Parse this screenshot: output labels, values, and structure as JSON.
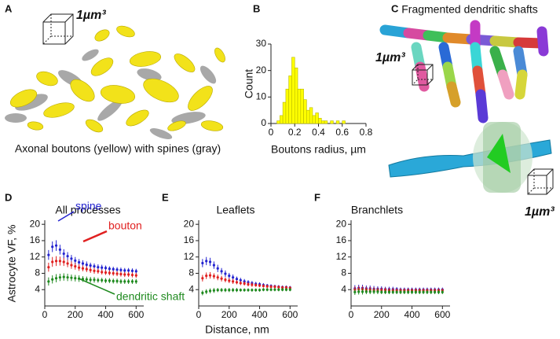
{
  "panel_a": {
    "letter": "A",
    "scale": "1µm³",
    "caption": "Axonal boutons (yellow) with spines (gray)"
  },
  "panel_c": {
    "letter": "C",
    "title": "Fragmented dendritic shafts",
    "scale_top": "1µm³",
    "scale_bottom": "1µm³"
  },
  "chart_data": [
    {
      "type": "histogram",
      "letter": "B",
      "xlabel": "Boutons radius, µm",
      "ylabel": "Count",
      "color": "#ffff00",
      "bins": [
        0.05,
        0.075,
        0.1,
        0.125,
        0.15,
        0.175,
        0.2,
        0.225,
        0.25,
        0.275,
        0.3,
        0.325,
        0.35,
        0.375,
        0.4,
        0.425,
        0.45,
        0.475,
        0.5,
        0.525,
        0.55,
        0.575,
        0.6,
        0.625
      ],
      "values": [
        1,
        3,
        8,
        13,
        18,
        25,
        21,
        13,
        13,
        9,
        5,
        6,
        3,
        4,
        2,
        1,
        1,
        0,
        1,
        0,
        1,
        0,
        1
      ],
      "xlim": [
        0,
        0.8
      ],
      "xticks": [
        0,
        0.2,
        0.4,
        0.6,
        0.8
      ],
      "ylim": [
        0,
        30
      ],
      "yticks": [
        0,
        10,
        20,
        30
      ]
    },
    {
      "type": "errorbar",
      "letter": "D",
      "title": "All processes",
      "ylabel": "Astrocyte VF, %",
      "x": [
        25,
        50,
        75,
        100,
        125,
        150,
        175,
        200,
        225,
        250,
        275,
        300,
        325,
        350,
        375,
        400,
        425,
        450,
        475,
        500,
        525,
        550,
        575,
        600
      ],
      "series": [
        {
          "name": "spine",
          "color": "#2323d0",
          "values": [
            12.5,
            14.5,
            14.8,
            13.8,
            12.8,
            12.2,
            11.6,
            11.1,
            10.7,
            10.4,
            10.1,
            9.9,
            9.7,
            9.5,
            9.4,
            9.3,
            9.1,
            9.0,
            8.9,
            8.8,
            8.7,
            8.7,
            8.6,
            8.5
          ],
          "errors": [
            1.2,
            1.3,
            1.3,
            1.2,
            1.1,
            1.0,
            0.9,
            0.9,
            0.8,
            0.8,
            0.8,
            0.7,
            0.7,
            0.7,
            0.7,
            0.6,
            0.6,
            0.6,
            0.6,
            0.6,
            0.6,
            0.6,
            0.6,
            0.6
          ]
        },
        {
          "name": "bouton",
          "color": "#e02020",
          "values": [
            9.5,
            10.8,
            11.0,
            11.0,
            10.8,
            10.4,
            10.0,
            9.7,
            9.4,
            9.2,
            9.0,
            8.8,
            8.6,
            8.5,
            8.3,
            8.2,
            8.1,
            8.0,
            7.9,
            7.8,
            7.7,
            7.7,
            7.6,
            7.5
          ],
          "errors": [
            1.1,
            1.2,
            1.2,
            1.1,
            1.0,
            0.9,
            0.9,
            0.8,
            0.8,
            0.7,
            0.7,
            0.7,
            0.7,
            0.6,
            0.6,
            0.6,
            0.6,
            0.6,
            0.6,
            0.6,
            0.6,
            0.6,
            0.6,
            0.6
          ]
        },
        {
          "name": "dendritic shaft",
          "color": "#1f8a1f",
          "values": [
            6.0,
            6.5,
            6.8,
            7.0,
            7.1,
            7.0,
            6.9,
            6.8,
            6.7,
            6.6,
            6.5,
            6.4,
            6.4,
            6.3,
            6.3,
            6.2,
            6.2,
            6.1,
            6.1,
            6.0,
            6.0,
            6.0,
            6.0,
            6.0
          ],
          "errors": [
            1.0,
            1.0,
            1.0,
            0.9,
            0.9,
            0.9,
            0.8,
            0.8,
            0.8,
            0.7,
            0.7,
            0.7,
            0.7,
            0.6,
            0.6,
            0.6,
            0.6,
            0.6,
            0.6,
            0.6,
            0.6,
            0.6,
            0.6,
            0.6
          ]
        }
      ],
      "xlim": [
        0,
        650
      ],
      "xticks": [
        0,
        200,
        400,
        600
      ],
      "ylim": [
        0,
        21
      ],
      "yticks": [
        4,
        8,
        12,
        16,
        20
      ]
    },
    {
      "type": "errorbar",
      "letter": "E",
      "title": "Leaflets",
      "xlabel": "Distance, nm",
      "x": [
        25,
        50,
        75,
        100,
        125,
        150,
        175,
        200,
        225,
        250,
        275,
        300,
        325,
        350,
        375,
        400,
        425,
        450,
        475,
        500,
        525,
        550,
        575,
        600
      ],
      "series": [
        {
          "color": "#2323d0",
          "values": [
            10.5,
            11.0,
            10.8,
            10.0,
            9.2,
            8.5,
            7.9,
            7.4,
            7.0,
            6.6,
            6.3,
            6.0,
            5.8,
            5.6,
            5.4,
            5.3,
            5.1,
            5.0,
            4.9,
            4.8,
            4.7,
            4.6,
            4.6,
            4.5
          ],
          "errors": [
            1.0,
            1.0,
            1.0,
            0.9,
            0.9,
            0.8,
            0.8,
            0.7,
            0.7,
            0.6,
            0.6,
            0.6,
            0.5,
            0.5,
            0.5,
            0.5,
            0.5,
            0.4,
            0.4,
            0.4,
            0.4,
            0.4,
            0.4,
            0.4
          ]
        },
        {
          "color": "#e02020",
          "values": [
            6.8,
            7.4,
            7.5,
            7.3,
            7.0,
            6.7,
            6.4,
            6.2,
            6.0,
            5.8,
            5.6,
            5.5,
            5.3,
            5.2,
            5.1,
            5.0,
            4.9,
            4.8,
            4.7,
            4.7,
            4.6,
            4.5,
            4.5,
            4.4
          ],
          "errors": [
            0.8,
            0.8,
            0.8,
            0.7,
            0.7,
            0.7,
            0.6,
            0.6,
            0.6,
            0.5,
            0.5,
            0.5,
            0.5,
            0.5,
            0.4,
            0.4,
            0.4,
            0.4,
            0.4,
            0.4,
            0.4,
            0.4,
            0.4,
            0.4
          ]
        },
        {
          "color": "#1f8a1f",
          "values": [
            3.2,
            3.5,
            3.7,
            3.8,
            3.9,
            3.9,
            3.9,
            3.9,
            3.9,
            3.9,
            3.9,
            3.9,
            3.9,
            3.9,
            3.9,
            3.9,
            4.0,
            4.0,
            4.0,
            4.0,
            4.0,
            4.0,
            4.0,
            4.0
          ],
          "errors": [
            0.6,
            0.6,
            0.6,
            0.6,
            0.5,
            0.5,
            0.5,
            0.5,
            0.5,
            0.5,
            0.4,
            0.4,
            0.4,
            0.4,
            0.4,
            0.4,
            0.4,
            0.4,
            0.4,
            0.4,
            0.4,
            0.4,
            0.4,
            0.4
          ]
        }
      ],
      "xlim": [
        0,
        650
      ],
      "xticks": [
        0,
        200,
        400,
        600
      ],
      "ylim": [
        0,
        21
      ],
      "yticks": [
        4,
        8,
        12,
        16,
        20
      ]
    },
    {
      "type": "errorbar",
      "letter": "F",
      "title": "Branchlets",
      "x": [
        25,
        50,
        75,
        100,
        125,
        150,
        175,
        200,
        225,
        250,
        275,
        300,
        325,
        350,
        375,
        400,
        425,
        450,
        475,
        500,
        525,
        550,
        575,
        600
      ],
      "series": [
        {
          "color": "#2323d0",
          "values": [
            4.3,
            4.4,
            4.4,
            4.3,
            4.3,
            4.2,
            4.2,
            4.2,
            4.1,
            4.1,
            4.1,
            4.1,
            4.0,
            4.0,
            4.0,
            4.0,
            4.0,
            4.0,
            4.0,
            4.0,
            4.0,
            4.0,
            4.0,
            4.0
          ],
          "errors": [
            0.8,
            0.8,
            0.8,
            0.7,
            0.7,
            0.7,
            0.6,
            0.6,
            0.6,
            0.6,
            0.6,
            0.5,
            0.5,
            0.5,
            0.5,
            0.5,
            0.5,
            0.5,
            0.5,
            0.5,
            0.5,
            0.5,
            0.5,
            0.5
          ]
        },
        {
          "color": "#e02020",
          "values": [
            4.0,
            4.1,
            4.1,
            4.0,
            4.0,
            3.9,
            3.9,
            3.9,
            3.9,
            3.8,
            3.8,
            3.8,
            3.8,
            3.8,
            3.8,
            3.8,
            3.8,
            3.8,
            3.8,
            3.8,
            3.8,
            3.8,
            3.8,
            3.8
          ],
          "errors": [
            0.8,
            0.8,
            0.8,
            0.7,
            0.7,
            0.7,
            0.6,
            0.6,
            0.6,
            0.6,
            0.6,
            0.5,
            0.5,
            0.5,
            0.5,
            0.5,
            0.5,
            0.5,
            0.5,
            0.5,
            0.5,
            0.5,
            0.5,
            0.5
          ]
        },
        {
          "color": "#1f8a1f",
          "values": [
            3.4,
            3.5,
            3.5,
            3.5,
            3.5,
            3.5,
            3.5,
            3.4,
            3.4,
            3.4,
            3.4,
            3.4,
            3.4,
            3.4,
            3.4,
            3.4,
            3.4,
            3.4,
            3.4,
            3.4,
            3.4,
            3.4,
            3.4,
            3.4
          ],
          "errors": [
            0.7,
            0.7,
            0.7,
            0.6,
            0.6,
            0.6,
            0.6,
            0.5,
            0.5,
            0.5,
            0.5,
            0.5,
            0.5,
            0.5,
            0.5,
            0.5,
            0.5,
            0.5,
            0.5,
            0.5,
            0.5,
            0.5,
            0.5,
            0.5
          ]
        }
      ],
      "xlim": [
        0,
        650
      ],
      "xticks": [
        0,
        200,
        400,
        600
      ],
      "ylim": [
        0,
        21
      ],
      "yticks": [
        4,
        8,
        12,
        16,
        20
      ]
    }
  ]
}
